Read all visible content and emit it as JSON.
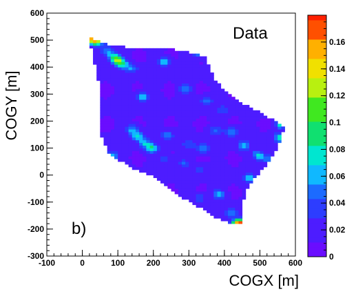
{
  "chart_data": {
    "type": "heatmap",
    "xlabel": "COGX [m]",
    "ylabel": "COGY [m]",
    "xlim": [
      -100,
      600
    ],
    "ylim": [
      -300,
      600
    ],
    "x_ticks": [
      "-100",
      "0",
      "100",
      "200",
      "300",
      "400",
      "500",
      "600"
    ],
    "y_ticks": [
      "600",
      "500",
      "400",
      "300",
      "200",
      "100",
      "0",
      "-100",
      "-200",
      "-300"
    ],
    "colorbar_ticks": [
      "0.16",
      "0.14",
      "0.12",
      "0.1",
      "0.08",
      "0.06",
      "0.04",
      "0.02",
      "0"
    ],
    "colorbar_range": [
      0,
      0.18
    ],
    "legend_label": "Data",
    "panel_label": "b)",
    "footprint_polygon": [
      [
        20,
        510
      ],
      [
        45,
        500
      ],
      [
        85,
        480
      ],
      [
        150,
        470
      ],
      [
        210,
        470
      ],
      [
        260,
        465
      ],
      [
        300,
        455
      ],
      [
        345,
        440
      ],
      [
        370,
        360
      ],
      [
        420,
        290
      ],
      [
        490,
        240
      ],
      [
        530,
        210
      ],
      [
        570,
        180
      ],
      [
        560,
        130
      ],
      [
        540,
        80
      ],
      [
        520,
        40
      ],
      [
        480,
        -20
      ],
      [
        460,
        -60
      ],
      [
        450,
        -130
      ],
      [
        445,
        -185
      ],
      [
        420,
        -180
      ],
      [
        380,
        -160
      ],
      [
        330,
        -120
      ],
      [
        290,
        -90
      ],
      [
        250,
        -50
      ],
      [
        220,
        -20
      ],
      [
        190,
        0
      ],
      [
        150,
        20
      ],
      [
        110,
        50
      ],
      [
        70,
        90
      ],
      [
        55,
        140
      ],
      [
        55,
        200
      ],
      [
        55,
        250
      ],
      [
        55,
        300
      ],
      [
        50,
        330
      ],
      [
        40,
        380
      ],
      [
        30,
        450
      ],
      [
        20,
        490
      ]
    ],
    "base_value": 0.012,
    "hotspots": [
      {
        "x": 32,
        "y": 505,
        "value": 0.16
      },
      {
        "x": 45,
        "y": 490,
        "value": 0.05
      },
      {
        "x": 70,
        "y": 460,
        "value": 0.04
      },
      {
        "x": 85,
        "y": 440,
        "value": 0.05
      },
      {
        "x": 100,
        "y": 425,
        "value": 0.1
      },
      {
        "x": 115,
        "y": 410,
        "value": 0.05
      },
      {
        "x": 140,
        "y": 395,
        "value": 0.04
      },
      {
        "x": 230,
        "y": 420,
        "value": 0.06
      },
      {
        "x": 330,
        "y": 455,
        "value": 0.06
      },
      {
        "x": 380,
        "y": 420,
        "value": 0.03
      },
      {
        "x": 500,
        "y": 280,
        "value": 0.05
      },
      {
        "x": 520,
        "y": 250,
        "value": 0.06
      },
      {
        "x": 560,
        "y": 190,
        "value": 0.07
      },
      {
        "x": 555,
        "y": 140,
        "value": 0.06
      },
      {
        "x": 170,
        "y": 290,
        "value": 0.06
      },
      {
        "x": 290,
        "y": 320,
        "value": 0.04
      },
      {
        "x": 350,
        "y": 275,
        "value": 0.04
      },
      {
        "x": 400,
        "y": 240,
        "value": 0.03
      },
      {
        "x": 140,
        "y": 170,
        "value": 0.05
      },
      {
        "x": 155,
        "y": 145,
        "value": 0.06
      },
      {
        "x": 175,
        "y": 120,
        "value": 0.05
      },
      {
        "x": 195,
        "y": 100,
        "value": 0.07
      },
      {
        "x": 240,
        "y": 150,
        "value": 0.04
      },
      {
        "x": 300,
        "y": 110,
        "value": 0.03
      },
      {
        "x": 340,
        "y": 100,
        "value": 0.05
      },
      {
        "x": 375,
        "y": 165,
        "value": 0.04
      },
      {
        "x": 420,
        "y": 160,
        "value": 0.05
      },
      {
        "x": 455,
        "y": 110,
        "value": 0.05
      },
      {
        "x": 495,
        "y": 75,
        "value": 0.06
      },
      {
        "x": 520,
        "y": 60,
        "value": 0.04
      },
      {
        "x": 85,
        "y": 70,
        "value": 0.06
      },
      {
        "x": 230,
        "y": 60,
        "value": 0.03
      },
      {
        "x": 285,
        "y": 45,
        "value": 0.03
      },
      {
        "x": 330,
        "y": 20,
        "value": 0.03
      },
      {
        "x": 470,
        "y": -10,
        "value": 0.05
      },
      {
        "x": 385,
        "y": -70,
        "value": 0.05
      },
      {
        "x": 330,
        "y": -85,
        "value": 0.03
      },
      {
        "x": 420,
        "y": -140,
        "value": 0.04
      },
      {
        "x": 437,
        "y": -180,
        "value": 0.12
      },
      {
        "x": 448,
        "y": -178,
        "value": 0.07
      }
    ]
  }
}
